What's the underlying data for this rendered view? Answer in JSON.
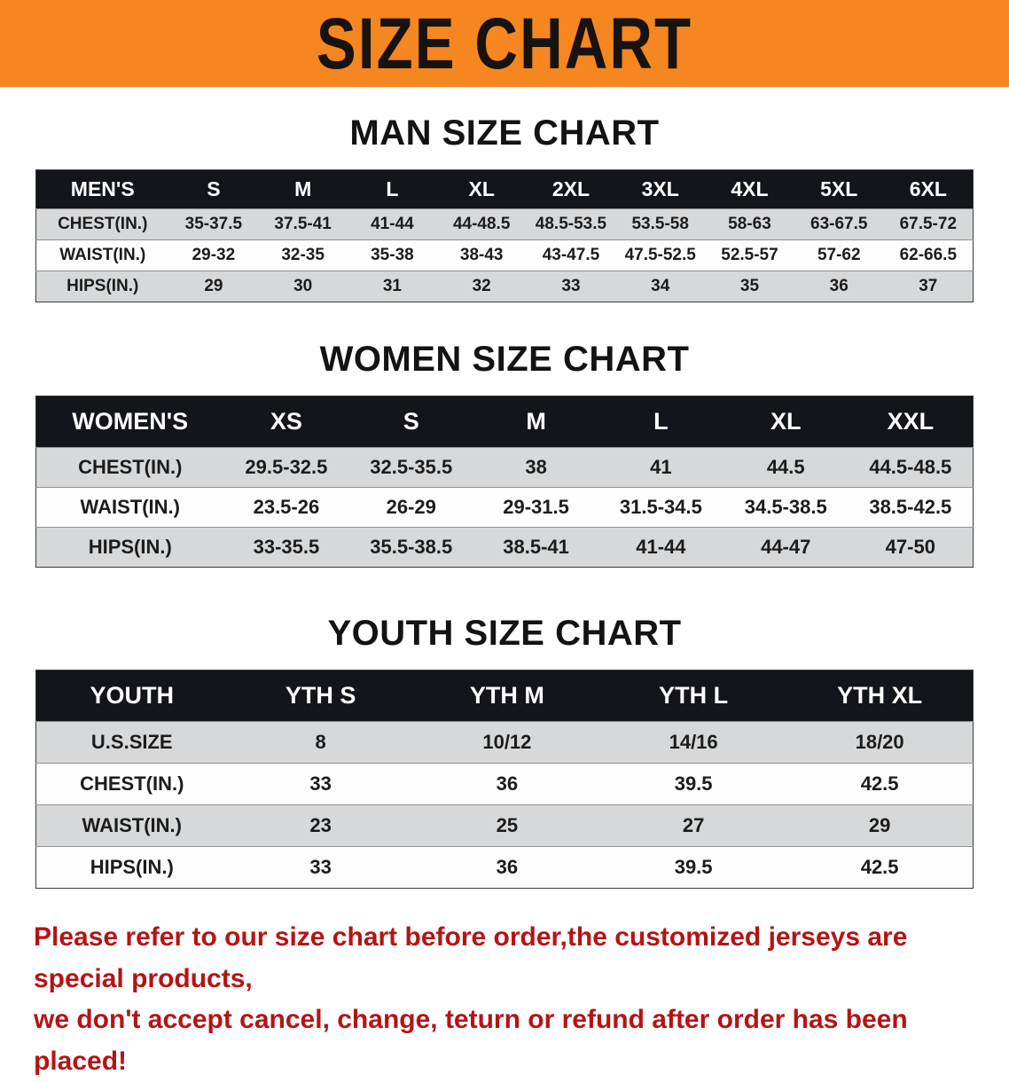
{
  "banner": {
    "title": "SIZE CHART",
    "bg_color": "#f6861f",
    "text_color": "#171310"
  },
  "sections": [
    {
      "heading": "MAN SIZE CHART",
      "table": {
        "header": [
          "MEN'S",
          "S",
          "M",
          "L",
          "XL",
          "2XL",
          "3XL",
          "4XL",
          "5XL",
          "6XL"
        ],
        "rows": [
          [
            "CHEST(IN.)",
            "35-37.5",
            "37.5-41",
            "41-44",
            "44-48.5",
            "48.5-53.5",
            "53.5-58",
            "58-63",
            "63-67.5",
            "67.5-72"
          ],
          [
            "WAIST(IN.)",
            "29-32",
            "32-35",
            "35-38",
            "38-43",
            "43-47.5",
            "47.5-52.5",
            "52.5-57",
            "57-62",
            "62-66.5"
          ],
          [
            "HIPS(IN.)",
            "29",
            "30",
            "31",
            "32",
            "33",
            "34",
            "35",
            "36",
            "37"
          ]
        ]
      }
    },
    {
      "heading": "WOMEN SIZE CHART",
      "table": {
        "header": [
          "WOMEN'S",
          "XS",
          "S",
          "M",
          "L",
          "XL",
          "XXL"
        ],
        "rows": [
          [
            "CHEST(IN.)",
            "29.5-32.5",
            "32.5-35.5",
            "38",
            "41",
            "44.5",
            "44.5-48.5"
          ],
          [
            "WAIST(IN.)",
            "23.5-26",
            "26-29",
            "29-31.5",
            "31.5-34.5",
            "34.5-38.5",
            "38.5-42.5"
          ],
          [
            "HIPS(IN.)",
            "33-35.5",
            "35.5-38.5",
            "38.5-41",
            "41-44",
            "44-47",
            "47-50"
          ]
        ]
      }
    },
    {
      "heading": "YOUTH SIZE CHART",
      "table": {
        "header": [
          "YOUTH",
          "YTH S",
          "YTH M",
          "YTH L",
          "YTH XL"
        ],
        "rows": [
          [
            "U.S.SIZE",
            "8",
            "10/12",
            "14/16",
            "18/20"
          ],
          [
            "CHEST(IN.)",
            "33",
            "36",
            "39.5",
            "42.5"
          ],
          [
            "WAIST(IN.)",
            "23",
            "25",
            "27",
            "29"
          ],
          [
            "HIPS(IN.)",
            "33",
            "36",
            "39.5",
            "42.5"
          ]
        ]
      }
    }
  ],
  "footer_note": {
    "line1": "Please refer to our size chart before order,the customized jerseys are special products,",
    "line2": "we don't accept cancel, change, teturn or refund after order has been placed!",
    "color": "#b51414"
  }
}
